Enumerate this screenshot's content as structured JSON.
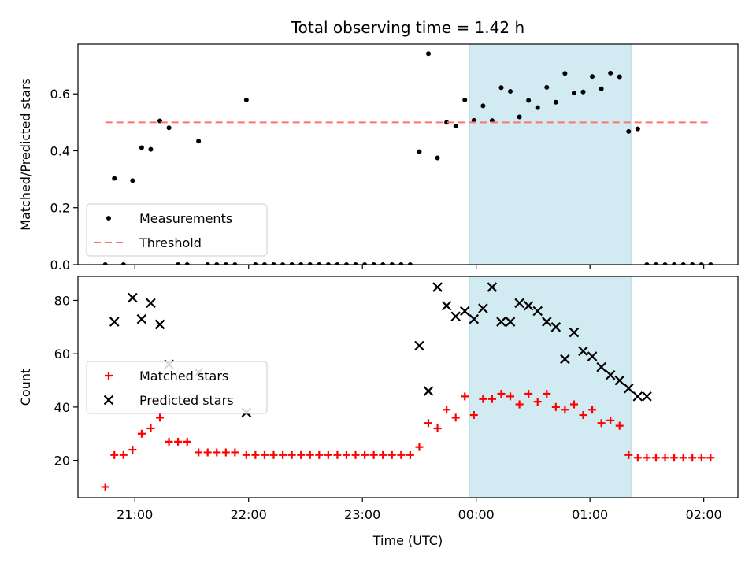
{
  "title": "Total observing time = 1.42 h",
  "xlabel": "Time (UTC)",
  "colors": {
    "highlight": "#add8e6",
    "threshold": "#ff7070",
    "matched": "#ff0000",
    "predicted": "#000000",
    "measurements": "#000000"
  },
  "chart_data": [
    {
      "type": "scatter",
      "ylabel": "Matched/Predicted stars",
      "ylim": [
        0,
        0.775
      ],
      "yticks": [
        0.0,
        0.2,
        0.4,
        0.6
      ],
      "ytick_labels": [
        "0.0",
        "0.2",
        "0.4",
        "0.6"
      ],
      "highlight_span_hours": [
        23.94,
        25.36
      ],
      "legend_location": "lower-left",
      "series": [
        {
          "name": "Measurements",
          "marker": "dot",
          "x_hours": [
            20.74,
            20.82,
            20.9,
            20.98,
            21.06,
            21.14,
            21.22,
            21.3,
            21.38,
            21.46,
            21.56,
            21.64,
            21.72,
            21.8,
            21.88,
            21.98,
            22.06,
            22.14,
            22.22,
            22.3,
            22.38,
            22.46,
            22.54,
            22.62,
            22.7,
            22.78,
            22.86,
            22.94,
            23.02,
            23.1,
            23.18,
            23.26,
            23.34,
            23.42,
            23.5,
            23.58,
            23.66,
            23.74,
            23.82,
            23.9,
            23.98,
            24.06,
            24.14,
            24.22,
            24.3,
            24.38,
            24.46,
            24.54,
            24.62,
            24.7,
            24.78,
            24.86,
            24.94,
            25.02,
            25.1,
            25.18,
            25.26,
            25.34,
            25.42,
            25.5,
            25.58,
            25.66,
            25.74,
            25.82,
            25.9,
            25.98,
            26.06
          ],
          "y": [
            0.0,
            0.303,
            0.0,
            0.295,
            0.411,
            0.405,
            0.505,
            0.481,
            0.0,
            0.0,
            0.434,
            0.0,
            0.0,
            0.0,
            0.0,
            0.579,
            0.0,
            0.0,
            0.0,
            0.0,
            0.0,
            0.0,
            0.0,
            0.0,
            0.0,
            0.0,
            0.0,
            0.0,
            0.0,
            0.0,
            0.0,
            0.0,
            0.0,
            0.0,
            0.397,
            0.741,
            0.375,
            0.5,
            0.487,
            0.579,
            0.507,
            0.558,
            0.506,
            0.622,
            0.609,
            0.519,
            0.577,
            0.552,
            0.623,
            0.571,
            0.672,
            0.603,
            0.607,
            0.661,
            0.618,
            0.673,
            0.66,
            0.468,
            0.477,
            0.0,
            0.0,
            0.0,
            0.0,
            0.0,
            0.0,
            0.0,
            0.0
          ]
        },
        {
          "name": "Threshold",
          "marker": "dashed-line",
          "x_hours": [
            20.74,
            26.04
          ],
          "y": [
            0.5,
            0.5
          ]
        }
      ]
    },
    {
      "type": "scatter",
      "ylabel": "Count",
      "ylim": [
        6,
        89
      ],
      "yticks": [
        20,
        40,
        60,
        80
      ],
      "ytick_labels": [
        "20",
        "40",
        "60",
        "80"
      ],
      "xlim_hours": [
        20.5,
        26.3
      ],
      "xticks_hours": [
        21,
        22,
        23,
        24,
        25,
        26
      ],
      "xtick_labels": [
        "21:00",
        "22:00",
        "23:00",
        "00:00",
        "01:00",
        "02:00"
      ],
      "highlight_span_hours": [
        23.94,
        25.36
      ],
      "legend_location": "center-left",
      "series": [
        {
          "name": "Matched stars",
          "marker": "plus",
          "x_hours": [
            20.74,
            20.82,
            20.9,
            20.98,
            21.06,
            21.14,
            21.22,
            21.3,
            21.38,
            21.46,
            21.56,
            21.64,
            21.72,
            21.8,
            21.88,
            21.98,
            22.06,
            22.14,
            22.22,
            22.3,
            22.38,
            22.46,
            22.54,
            22.62,
            22.7,
            22.78,
            22.86,
            22.94,
            23.02,
            23.1,
            23.18,
            23.26,
            23.34,
            23.42,
            23.5,
            23.58,
            23.66,
            23.74,
            23.82,
            23.9,
            23.98,
            24.06,
            24.14,
            24.22,
            24.3,
            24.38,
            24.46,
            24.54,
            24.62,
            24.7,
            24.78,
            24.86,
            24.94,
            25.02,
            25.1,
            25.18,
            25.26,
            25.34,
            25.42,
            25.5,
            25.58,
            25.66,
            25.74,
            25.82,
            25.9,
            25.98,
            26.06
          ],
          "y": [
            10,
            22,
            22,
            24,
            30,
            32,
            36,
            27,
            27,
            27,
            23,
            23,
            23,
            23,
            23,
            22,
            22,
            22,
            22,
            22,
            22,
            22,
            22,
            22,
            22,
            22,
            22,
            22,
            22,
            22,
            22,
            22,
            22,
            22,
            25,
            34,
            32,
            39,
            36,
            44,
            37,
            43,
            43,
            45,
            44,
            41,
            45,
            42,
            45,
            40,
            39,
            41,
            37,
            39,
            34,
            35,
            33,
            22,
            21,
            21,
            21,
            21,
            21,
            21,
            21,
            21,
            21
          ]
        },
        {
          "name": "Predicted stars",
          "marker": "cross",
          "x_hours": [
            20.82,
            20.98,
            21.06,
            21.14,
            21.22,
            21.3,
            21.56,
            21.98,
            23.5,
            23.58,
            23.66,
            23.74,
            23.82,
            23.9,
            23.98,
            24.06,
            24.14,
            24.22,
            24.3,
            24.38,
            24.46,
            24.54,
            24.62,
            24.7,
            24.78,
            24.86,
            24.94,
            25.02,
            25.1,
            25.18,
            25.26,
            25.34,
            25.42,
            25.5
          ],
          "y": [
            72,
            81,
            73,
            79,
            71,
            56,
            53,
            38,
            63,
            46,
            85,
            78,
            74,
            76,
            73,
            77,
            85,
            72,
            72,
            79,
            78,
            76,
            72,
            70,
            58,
            68,
            61,
            59,
            55,
            52,
            50,
            47,
            44,
            44
          ]
        }
      ]
    }
  ]
}
